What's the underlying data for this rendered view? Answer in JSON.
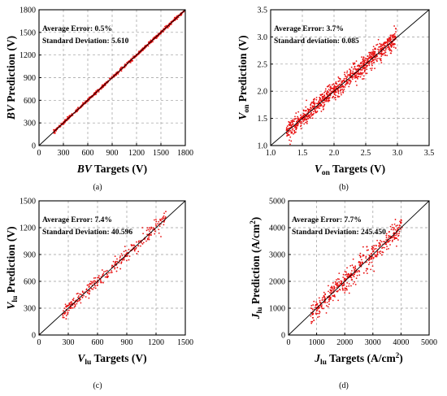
{
  "chart_data": [
    {
      "type": "scatter",
      "panel_label": "(a)",
      "xlabel": {
        "main": "BV",
        "sub": "",
        "rest": " Targets (V)"
      },
      "ylabel": {
        "main": "BV",
        "sub": "",
        "rest": " Prediction (V)"
      },
      "xlim": [
        0,
        1800
      ],
      "ylim": [
        0,
        1800
      ],
      "xticks": [
        0,
        300,
        600,
        900,
        1200,
        1500,
        1800
      ],
      "yticks": [
        0,
        300,
        600,
        900,
        1200,
        1500,
        1800
      ],
      "tick_labels_x": [
        "0",
        "300",
        "600",
        "900",
        "1200",
        "1500",
        "1800"
      ],
      "tick_labels_y": [
        "0",
        "300",
        "600",
        "900",
        "1200",
        "1500",
        "1800"
      ],
      "annotations": [
        "Average Error: 0.5%",
        "Standard Deviation: 5.610"
      ],
      "reference_line": [
        [
          0,
          0
        ],
        [
          1800,
          1800
        ]
      ],
      "grid": true,
      "noise": 10,
      "points": [
        [
          200,
          203
        ],
        [
          250,
          248
        ],
        [
          300,
          305
        ],
        [
          350,
          346
        ],
        [
          400,
          402
        ],
        [
          450,
          455
        ],
        [
          500,
          497
        ],
        [
          550,
          553
        ],
        [
          600,
          603
        ],
        [
          650,
          646
        ],
        [
          700,
          706
        ],
        [
          750,
          752
        ],
        [
          800,
          795
        ],
        [
          850,
          858
        ],
        [
          900,
          903
        ],
        [
          950,
          947
        ],
        [
          1000,
          1008
        ],
        [
          1050,
          1045
        ],
        [
          1100,
          1104
        ],
        [
          1150,
          1158
        ],
        [
          1200,
          1195
        ],
        [
          1250,
          1256
        ],
        [
          1300,
          1297
        ],
        [
          1350,
          1353
        ],
        [
          1400,
          1402
        ],
        [
          1450,
          1455
        ],
        [
          1500,
          1496
        ],
        [
          1550,
          1552
        ],
        [
          1600,
          1607
        ],
        [
          1650,
          1646
        ],
        [
          1700,
          1703
        ],
        [
          1750,
          1752
        ]
      ],
      "n_extra": 700,
      "extra_range": [
        180,
        1790
      ]
    },
    {
      "type": "scatter",
      "panel_label": "(b)",
      "xlabel": {
        "main": "V",
        "sub": "on",
        "rest": " Targets (V)"
      },
      "ylabel": {
        "main": "V",
        "sub": "on",
        "rest": " Prediction (V)"
      },
      "xlim": [
        1.0,
        3.5
      ],
      "ylim": [
        1.0,
        3.5
      ],
      "xticks": [
        1.0,
        1.5,
        2.0,
        2.5,
        3.0,
        3.5
      ],
      "yticks": [
        1.0,
        1.5,
        2.0,
        2.5,
        3.0,
        3.5
      ],
      "tick_labels_x": [
        "1.0",
        "1.5",
        "2.0",
        "2.5",
        "3.0",
        "3.5"
      ],
      "tick_labels_y": [
        "1.0",
        "1.5",
        "2.0",
        "2.5",
        "3.0",
        "3.5"
      ],
      "annotations": [
        "Average Error: 3.7%",
        "Standard deviation: 0.085"
      ],
      "reference_line": [
        [
          1.0,
          1.0
        ],
        [
          3.5,
          3.5
        ]
      ],
      "grid": true,
      "noise": 0.085,
      "points": [
        [
          1.25,
          1.28
        ],
        [
          1.4,
          1.38
        ],
        [
          1.6,
          1.65
        ],
        [
          1.8,
          1.75
        ],
        [
          2.0,
          2.08
        ],
        [
          2.2,
          2.15
        ],
        [
          2.4,
          2.47
        ],
        [
          2.6,
          2.55
        ],
        [
          2.8,
          2.9
        ],
        [
          2.95,
          3.2
        ],
        [
          2.9,
          2.7
        ],
        [
          2.7,
          2.95
        ]
      ],
      "n_extra": 900,
      "extra_range": [
        1.25,
        2.98
      ]
    },
    {
      "type": "scatter",
      "panel_label": "(c)",
      "xlabel": {
        "main": "V",
        "sub": "lu",
        "rest": " Targets (V)"
      },
      "ylabel": {
        "main": "V",
        "sub": "lu",
        "rest": " Prediction (V)"
      },
      "xlim": [
        0,
        1500
      ],
      "ylim": [
        0,
        1500
      ],
      "xticks": [
        0,
        300,
        600,
        900,
        1200,
        1500
      ],
      "yticks": [
        0,
        300,
        600,
        900,
        1200,
        1500
      ],
      "tick_labels_x": [
        "0",
        "300",
        "600",
        "900",
        "1200",
        "1500"
      ],
      "tick_labels_y": [
        "0",
        "300",
        "600",
        "900",
        "1200",
        "1500"
      ],
      "annotations": [
        "Average Error: 7.4%",
        "Standard Deviation: 40.596"
      ],
      "reference_line": [
        [
          0,
          0
        ],
        [
          1500,
          1500
        ]
      ],
      "grid": true,
      "noise": 40,
      "points": [
        [
          5,
          10
        ],
        [
          250,
          270
        ],
        [
          300,
          330
        ],
        [
          330,
          310
        ],
        [
          400,
          420
        ],
        [
          500,
          470
        ],
        [
          600,
          640
        ],
        [
          700,
          660
        ],
        [
          800,
          850
        ],
        [
          900,
          880
        ],
        [
          1000,
          1040
        ],
        [
          1100,
          1050
        ],
        [
          1200,
          1220
        ],
        [
          1250,
          1100
        ],
        [
          1300,
          1380
        ],
        [
          1060,
          1200
        ]
      ],
      "n_extra": 300,
      "extra_range": [
        240,
        1300
      ]
    },
    {
      "type": "scatter",
      "panel_label": "(d)",
      "xlabel": {
        "main": "J",
        "sub": "lu",
        "rest": " Targets (A/cm",
        "sup": "2",
        "tail": ")"
      },
      "ylabel": {
        "main": "J",
        "sub": "lu",
        "rest": " Prediction (A/cm",
        "sup": "2",
        "tail": ")"
      },
      "xlim": [
        0,
        5000
      ],
      "ylim": [
        0,
        5000
      ],
      "xticks": [
        0,
        1000,
        2000,
        3000,
        4000,
        5000
      ],
      "yticks": [
        0,
        1000,
        2000,
        3000,
        4000,
        5000
      ],
      "tick_labels_x": [
        "0",
        "1000",
        "2000",
        "3000",
        "4000",
        "5000"
      ],
      "tick_labels_y": [
        "0",
        "1000",
        "2000",
        "3000",
        "4000",
        "5000"
      ],
      "annotations": [
        "Average Error: 7.7%",
        "Standard Deviation: 245.450"
      ],
      "reference_line": [
        [
          0,
          0
        ],
        [
          5000,
          5000
        ]
      ],
      "grid": true,
      "noise": 200,
      "points": [
        [
          800,
          1000
        ],
        [
          1000,
          900
        ],
        [
          1200,
          1300
        ],
        [
          1500,
          1400
        ],
        [
          2000,
          2100
        ],
        [
          2500,
          2400
        ],
        [
          3000,
          3100
        ],
        [
          3500,
          3300
        ],
        [
          3800,
          3600
        ],
        [
          4000,
          4300
        ],
        [
          1800,
          2300
        ],
        [
          2800,
          2300
        ]
      ],
      "n_extra": 450,
      "extra_range": [
        780,
        4050
      ]
    }
  ],
  "colors": {
    "points": "#e81010",
    "axes": "#000000",
    "grid": "#9a9a9a",
    "diagonal": "#000000"
  }
}
